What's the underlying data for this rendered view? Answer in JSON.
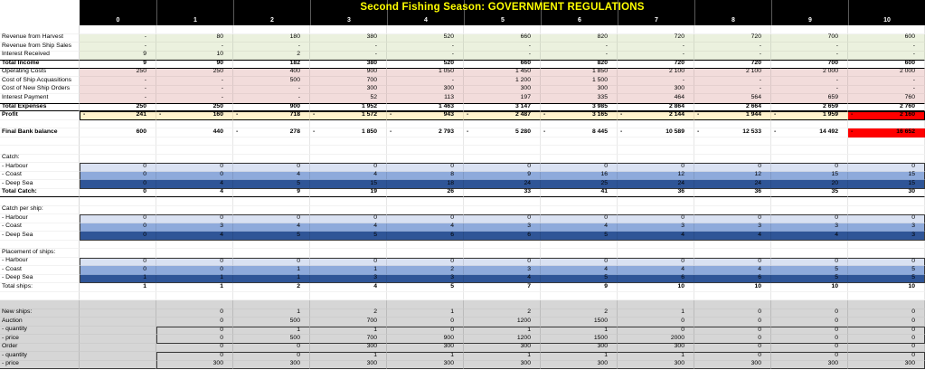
{
  "title": "Second Fishing Season: GOVERNMENT REGULATIONS",
  "columns": [
    "0",
    "1",
    "2",
    "3",
    "4",
    "5",
    "6",
    "7",
    "8",
    "9",
    "10"
  ],
  "colors": {
    "header_bg": "#000000",
    "title_fg": "#FFFF00",
    "income_bg": "#EBF1DE",
    "expense_bg": "#F2DCDB",
    "profit_bg": "#FFF2CC",
    "alert_bg": "#FF0000",
    "harbour_bg": "#D9E1F2",
    "coast_bg": "#8EAADB",
    "deepsea_bg": "#2F5597",
    "footer_bg": "#D6D6D6"
  },
  "rows": {
    "revenue_harvest": {
      "label": "Revenue from Harvest",
      "values": [
        "-",
        "80",
        "180",
        "380",
        "520",
        "660",
        "820",
        "720",
        "720",
        "700",
        "600"
      ]
    },
    "revenue_ship_sales": {
      "label": "Revenue from Ship Sales",
      "values": [
        "-",
        "-",
        "-",
        "-",
        "-",
        "-",
        "-",
        "-",
        "-",
        "-",
        "-"
      ]
    },
    "interest_received": {
      "label": "Interest Received",
      "values": [
        "9",
        "10",
        "2",
        "-",
        "-",
        "-",
        "-",
        "-",
        "-",
        "-",
        "-"
      ]
    },
    "total_income": {
      "label": "Total Income",
      "values": [
        "9",
        "90",
        "182",
        "380",
        "520",
        "660",
        "820",
        "720",
        "720",
        "700",
        "600"
      ]
    },
    "operating_costs": {
      "label": "Operating Costs",
      "values": [
        "250",
        "250",
        "400",
        "900",
        "1 050",
        "1 450",
        "1 850",
        "2 100",
        "2 100",
        "2 000",
        "2 000"
      ]
    },
    "cost_of_ship_acquasitions": {
      "label": "Cost of Ship Acquasitions",
      "values": [
        "-",
        "-",
        "500",
        "700",
        "-",
        "1 200",
        "1 500",
        "-",
        "-",
        "-",
        "-"
      ]
    },
    "cost_of_new_ship_orders": {
      "label": "Cost of New Ship Orders",
      "values": [
        "-",
        "-",
        "-",
        "300",
        "300",
        "300",
        "300",
        "300",
        "-",
        "-",
        "-"
      ]
    },
    "interest_payment": {
      "label": "Interest Payment",
      "values": [
        "-",
        "-",
        "-",
        "52",
        "113",
        "197",
        "335",
        "464",
        "564",
        "659",
        "760"
      ]
    },
    "total_expenses": {
      "label": "Total Expenses",
      "values": [
        "250",
        "250",
        "900",
        "1 952",
        "1 463",
        "3 147",
        "3 985",
        "2 864",
        "2 664",
        "2 659",
        "2 760"
      ]
    },
    "profit": {
      "label": "Profit",
      "values": [
        "-241",
        "-160",
        "-718",
        "-1 572",
        "-943",
        "-2 487",
        "-3 165",
        "-2 144",
        "-1 944",
        "-1 959",
        "-2 160"
      ]
    },
    "final_bank_balance": {
      "label": "Final Bank balance",
      "values": [
        "600",
        "440",
        "-278",
        "-1 850",
        "-2 793",
        "-5 280",
        "-8 445",
        "-10 589",
        "-12 533",
        "-14 492",
        "-16 652"
      ]
    },
    "catch_header": {
      "label": "Catch:",
      "values": [
        "",
        "",
        "",
        "",
        "",
        "",
        "",
        "",
        "",
        "",
        ""
      ]
    },
    "catch_harbour": {
      "label": "- Harbour",
      "values": [
        "0",
        "0",
        "0",
        "0",
        "0",
        "0",
        "0",
        "0",
        "0",
        "0",
        "0"
      ]
    },
    "catch_coast": {
      "label": "- Coast",
      "values": [
        "0",
        "0",
        "4",
        "4",
        "8",
        "9",
        "16",
        "12",
        "12",
        "15",
        "15"
      ]
    },
    "catch_deep": {
      "label": "- Deep Sea",
      "values": [
        "0",
        "4",
        "5",
        "15",
        "18",
        "24",
        "25",
        "24",
        "24",
        "20",
        "15"
      ]
    },
    "total_catch": {
      "label": "Total Catch:",
      "values": [
        "0",
        "4",
        "9",
        "19",
        "26",
        "33",
        "41",
        "36",
        "36",
        "35",
        "30"
      ]
    },
    "cps_header": {
      "label": "Catch per ship:",
      "values": [
        "",
        "",
        "",
        "",
        "",
        "",
        "",
        "",
        "",
        "",
        ""
      ]
    },
    "cps_harbour": {
      "label": "- Harbour",
      "values": [
        "0",
        "0",
        "0",
        "0",
        "0",
        "0",
        "0",
        "0",
        "0",
        "0",
        "0"
      ]
    },
    "cps_coast": {
      "label": "- Coast",
      "values": [
        "0",
        "3",
        "4",
        "4",
        "4",
        "3",
        "4",
        "3",
        "3",
        "3",
        "3"
      ]
    },
    "cps_deep": {
      "label": "- Deep Sea",
      "values": [
        "0",
        "4",
        "5",
        "5",
        "6",
        "6",
        "5",
        "4",
        "4",
        "4",
        "3"
      ]
    },
    "placement_header": {
      "label": "Placement of ships:",
      "values": [
        "",
        "",
        "",
        "",
        "",
        "",
        "",
        "",
        "",
        "",
        ""
      ]
    },
    "pl_harbour": {
      "label": "- Harbour",
      "values": [
        "0",
        "0",
        "0",
        "0",
        "0",
        "0",
        "0",
        "0",
        "0",
        "0",
        "0"
      ]
    },
    "pl_coast": {
      "label": "- Coast",
      "values": [
        "0",
        "0",
        "1",
        "1",
        "2",
        "3",
        "4",
        "4",
        "4",
        "5",
        "5"
      ]
    },
    "pl_deep": {
      "label": "- Deep Sea",
      "values": [
        "1",
        "1",
        "1",
        "3",
        "3",
        "4",
        "5",
        "6",
        "6",
        "5",
        "5"
      ]
    },
    "total_ships": {
      "label": "Total ships:",
      "values": [
        "1",
        "1",
        "2",
        "4",
        "5",
        "7",
        "9",
        "10",
        "10",
        "10",
        "10"
      ]
    },
    "new_ships": {
      "label": "New ships:",
      "values": [
        "",
        "0",
        "1",
        "2",
        "1",
        "2",
        "2",
        "1",
        "0",
        "0",
        "0"
      ]
    },
    "auction": {
      "label": "Auction",
      "values": [
        "",
        "0",
        "500",
        "700",
        "0",
        "1200",
        "1500",
        "0",
        "0",
        "0",
        "0"
      ]
    },
    "auction_quantity": {
      "label": "- quantity",
      "values": [
        "",
        "0",
        "1",
        "1",
        "0",
        "1",
        "1",
        "0",
        "0",
        "0",
        "0"
      ]
    },
    "auction_price": {
      "label": "- price",
      "values": [
        "",
        "0",
        "500",
        "700",
        "900",
        "1200",
        "1500",
        "2000",
        "0",
        "0",
        "0"
      ]
    },
    "order": {
      "label": "Order",
      "values": [
        "",
        "0",
        "0",
        "300",
        "300",
        "300",
        "300",
        "300",
        "0",
        "0",
        "0"
      ]
    },
    "order_quantity": {
      "label": "- quantity",
      "values": [
        "",
        "0",
        "0",
        "1",
        "1",
        "1",
        "1",
        "1",
        "0",
        "0",
        "0"
      ]
    },
    "order_price": {
      "label": "- price",
      "values": [
        "",
        "300",
        "300",
        "300",
        "300",
        "300",
        "300",
        "300",
        "300",
        "300",
        "300"
      ]
    }
  }
}
